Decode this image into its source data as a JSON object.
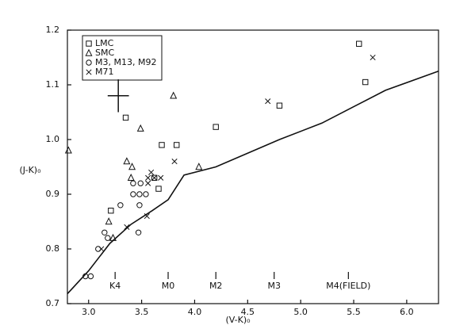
{
  "chart_data": {
    "type": "scatter",
    "xlabel": "(V-K)₀",
    "ylabel": "(J-K)₀",
    "xlim": [
      2.8,
      6.3
    ],
    "ylim": [
      0.7,
      1.2
    ],
    "xticks": [
      {
        "value": 3,
        "label": "3.0"
      },
      3.5,
      {
        "value": 4,
        "label": "4.0"
      },
      4.5,
      {
        "value": 5,
        "label": "5.0"
      },
      5.5,
      {
        "value": 6,
        "label": "6.0"
      }
    ],
    "yticks": [
      0.7,
      0.8,
      0.9,
      {
        "value": 1,
        "label": "1.0"
      },
      1.1,
      1.2
    ],
    "legend": "upper left",
    "series": [
      {
        "name": "LMC",
        "marker": "square",
        "color": "#111",
        "x": [
          5.55,
          5.61,
          4.8,
          3.35,
          4.2,
          3.83,
          3.69,
          3.21,
          3.66,
          3.62
        ],
        "values": [
          1.175,
          1.105,
          1.062,
          1.04,
          1.023,
          0.99,
          0.99,
          0.87,
          0.91,
          0.93
        ]
      },
      {
        "name": "SMC",
        "marker": "triangle",
        "color": "#111",
        "x": [
          2.81,
          3.8,
          3.49,
          3.36,
          3.41,
          3.4,
          4.04,
          3.19,
          3.23
        ],
        "values": [
          0.98,
          1.08,
          1.02,
          0.96,
          0.95,
          0.93,
          0.95,
          0.85,
          0.82
        ]
      },
      {
        "name": "M3, M13, M92",
        "marker": "circle",
        "color": "#111",
        "x": [
          2.97,
          3.02,
          3.09,
          3.15,
          3.18,
          3.3,
          3.42,
          3.49,
          3.42,
          3.48,
          3.54,
          3.48,
          3.47
        ],
        "values": [
          0.75,
          0.75,
          0.8,
          0.83,
          0.82,
          0.88,
          0.92,
          0.92,
          0.9,
          0.9,
          0.9,
          0.88,
          0.83
        ]
      },
      {
        "name": "M71",
        "marker": "x",
        "color": "#111",
        "x": [
          5.68,
          4.69,
          3.81,
          3.59,
          3.56,
          3.62,
          3.68,
          3.56,
          3.55,
          3.36,
          3.12
        ],
        "values": [
          1.15,
          1.07,
          0.96,
          0.94,
          0.93,
          0.93,
          0.93,
          0.92,
          0.86,
          0.84,
          0.8
        ]
      },
      {
        "marker": "line",
        "color": "#111",
        "x": [
          2.8,
          3.0,
          3.2,
          3.4,
          3.6,
          3.75,
          3.85,
          3.9,
          4.2,
          4.5,
          4.8,
          5.2,
          5.5,
          5.8,
          6.3
        ],
        "values": [
          0.718,
          0.76,
          0.81,
          0.845,
          0.87,
          0.89,
          0.92,
          0.935,
          0.95,
          0.975,
          1.0,
          1.03,
          1.06,
          1.09,
          1.125
        ]
      }
    ],
    "error_bar": {
      "x": 3.28,
      "y": 1.08,
      "xerr": 0.1,
      "yerr": 0.03
    },
    "spectral_types": [
      {
        "label": "K4",
        "x": 3.25
      },
      {
        "label": "M0",
        "x": 3.75
      },
      {
        "label": "M2",
        "x": 4.2
      },
      {
        "label": "M3",
        "x": 4.75
      },
      {
        "label": "M4(FIELD)",
        "x": 5.45
      }
    ]
  }
}
